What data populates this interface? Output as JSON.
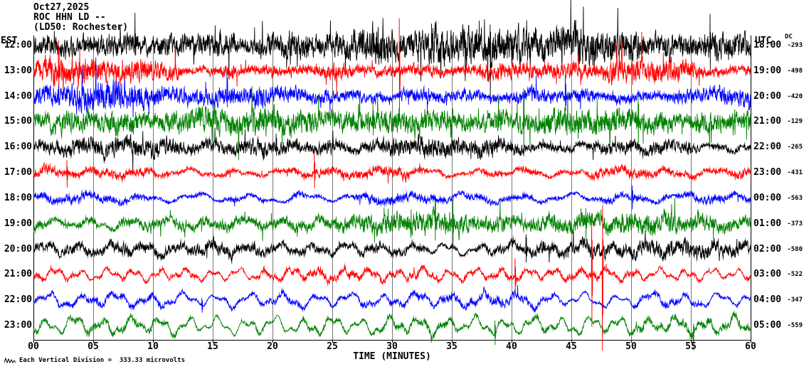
{
  "header": {
    "date": "Oct27,2025",
    "station": "ROC HHN LD --",
    "station_info": "(LD50: Rochester)"
  },
  "axes": {
    "left_label": "EST",
    "right_label": "UTC",
    "dc_label": "DC",
    "x_axis_label": "TIME (MINUTES)"
  },
  "footer": {
    "scale_note": "Each Vertical Division =  333.33 microvolts"
  },
  "colors": {
    "axis": "#000000",
    "grid": "#777777",
    "black": "#000000",
    "red": "#ff0000",
    "blue": "#0000ff",
    "green": "#008000"
  },
  "chart_data": {
    "type": "line",
    "subtype": "helicorder-seismogram",
    "title": "ROC HHN LD -- (LD50: Rochester) Oct27,2025",
    "xlabel": "TIME (MINUTES)",
    "x_range": [
      0,
      60
    ],
    "x_tick_step": 5,
    "x_tick_labels": [
      "00",
      "05",
      "10",
      "15",
      "20",
      "25",
      "30",
      "35",
      "40",
      "45",
      "50",
      "55",
      "60"
    ],
    "left_axis": "EST",
    "right_axis": "UTC",
    "dc_column": "DC",
    "vertical_scale": "Each Vertical Division = 333.33 microvolts",
    "grid": true,
    "rows": [
      {
        "est_time": "12:00",
        "utc_time": "18:00",
        "dc_offset": -293,
        "color": "#000000",
        "character": "very high amplitude broadband noise",
        "render": {
          "hf": 13,
          "lf": 2,
          "lf_period": 4,
          "spike_prob": 0.022,
          "seed": 101,
          "spikes": [
            {
              "m": 38.2,
              "a": 55
            },
            {
              "m": 56.6,
              "a": 40
            },
            {
              "m": 8.5,
              "a": 35
            }
          ]
        }
      },
      {
        "est_time": "13:00",
        "utc_time": "19:00",
        "dc_offset": -498,
        "color": "#ff0000",
        "character": "very high amplitude noise with large spike near minute 30",
        "render": {
          "hf": 11.5,
          "lf": 2,
          "lf_period": 4.5,
          "spike_prob": 0.02,
          "seed": 202,
          "spikes": [
            {
              "m": 30.6,
              "a": 75
            },
            {
              "m": 2.1,
              "a": 40
            },
            {
              "m": 49.2,
              "a": 35
            }
          ]
        }
      },
      {
        "est_time": "14:00",
        "utc_time": "20:00",
        "dc_offset": -420,
        "color": "#0000ff",
        "character": "high amplitude noise",
        "render": {
          "hf": 9.5,
          "lf": 2.5,
          "lf_period": 5,
          "spike_prob": 0.016,
          "seed": 303,
          "spikes": [
            {
              "m": 16.2,
              "a": 30
            },
            {
              "m": 44.5,
              "a": 28
            }
          ]
        }
      },
      {
        "est_time": "15:00",
        "utc_time": "21:00",
        "dc_offset": -129,
        "color": "#008000",
        "character": "high amplitude noise with bursts",
        "render": {
          "hf": 10,
          "lf": 3,
          "lf_period": 5,
          "spike_prob": 0.018,
          "seed": 404,
          "spikes": [
            {
              "m": 41.0,
              "a": 45
            },
            {
              "m": 50.6,
              "a": 35
            },
            {
              "m": 28.4,
              "a": 30
            }
          ]
        }
      },
      {
        "est_time": "16:00",
        "utc_time": "22:00",
        "dc_offset": -265,
        "color": "#000000",
        "character": "moderate noise",
        "render": {
          "hf": 6.5,
          "lf": 3,
          "lf_period": 3.5,
          "spike_prob": 0.012,
          "seed": 505,
          "spikes": [
            {
              "m": 20.3,
              "a": 18
            }
          ]
        }
      },
      {
        "est_time": "17:00",
        "utc_time": "23:00",
        "dc_offset": -431,
        "color": "#ff0000",
        "character": "moderate noise",
        "render": {
          "hf": 5.5,
          "lf": 3.5,
          "lf_period": 4,
          "spike_prob": 0.012,
          "seed": 606,
          "spikes": [
            {
              "m": 23.5,
              "a": 26
            },
            {
              "m": 2.8,
              "a": 20
            }
          ]
        }
      },
      {
        "est_time": "18:00",
        "utc_time": "00:00",
        "dc_offset": -563,
        "color": "#0000ff",
        "character": "moderate noise",
        "render": {
          "hf": 4.5,
          "lf": 4,
          "lf_period": 4.5,
          "spike_prob": 0.01,
          "seed": 707,
          "spikes": [
            {
              "m": 50.1,
              "a": 18
            }
          ]
        }
      },
      {
        "est_time": "19:00",
        "utc_time": "01:00",
        "dc_offset": -373,
        "color": "#008000",
        "character": "moderate noise with bursts near minutes 33-35",
        "render": {
          "hf": 7,
          "lf": 4.5,
          "lf_period": 3.2,
          "spike_prob": 0.014,
          "seed": 808,
          "spikes": [
            {
              "m": 33.6,
              "a": 40
            },
            {
              "m": 35.1,
              "a": 30
            },
            {
              "m": 46.2,
              "a": 25
            }
          ]
        }
      },
      {
        "est_time": "20:00",
        "utc_time": "02:00",
        "dc_offset": -580,
        "color": "#000000",
        "character": "moderate noise with long-period motion",
        "render": {
          "hf": 5.5,
          "lf": 5,
          "lf_period": 2.8,
          "spike_prob": 0.01,
          "seed": 909,
          "spikes": [
            {
              "m": 41.2,
              "a": 24
            }
          ]
        }
      },
      {
        "est_time": "21:00",
        "utc_time": "03:00",
        "dc_offset": -522,
        "color": "#ff0000",
        "character": "long-period wiggles with very large spikes near minute 47",
        "render": {
          "hf": 3.5,
          "lf": 5.5,
          "lf_period": 2.2,
          "spike_prob": 0.008,
          "seed": 1010,
          "spikes": [
            {
              "m": 46.7,
              "a": 85
            },
            {
              "m": 47.6,
              "a": -110
            },
            {
              "m": 40.3,
              "a": 28
            }
          ]
        }
      },
      {
        "est_time": "22:00",
        "utc_time": "04:00",
        "dc_offset": -347,
        "color": "#0000ff",
        "character": "long-period microseism wiggles",
        "render": {
          "hf": 3.2,
          "lf": 6.5,
          "lf_period": 2.8,
          "spike_prob": 0.006,
          "seed": 1111,
          "spikes": [
            {
              "m": 14.1,
              "a": 12
            }
          ]
        }
      },
      {
        "est_time": "23:00",
        "utc_time": "05:00",
        "dc_offset": -559,
        "color": "#008000",
        "character": "long-period microseism wiggles",
        "render": {
          "hf": 3.0,
          "lf": 8,
          "lf_period": 2.4,
          "spike_prob": 0.005,
          "seed": 1212,
          "spikes": [
            {
              "m": 38.6,
              "a": 18
            },
            {
              "m": 55.2,
              "a": -20
            }
          ]
        }
      }
    ]
  }
}
